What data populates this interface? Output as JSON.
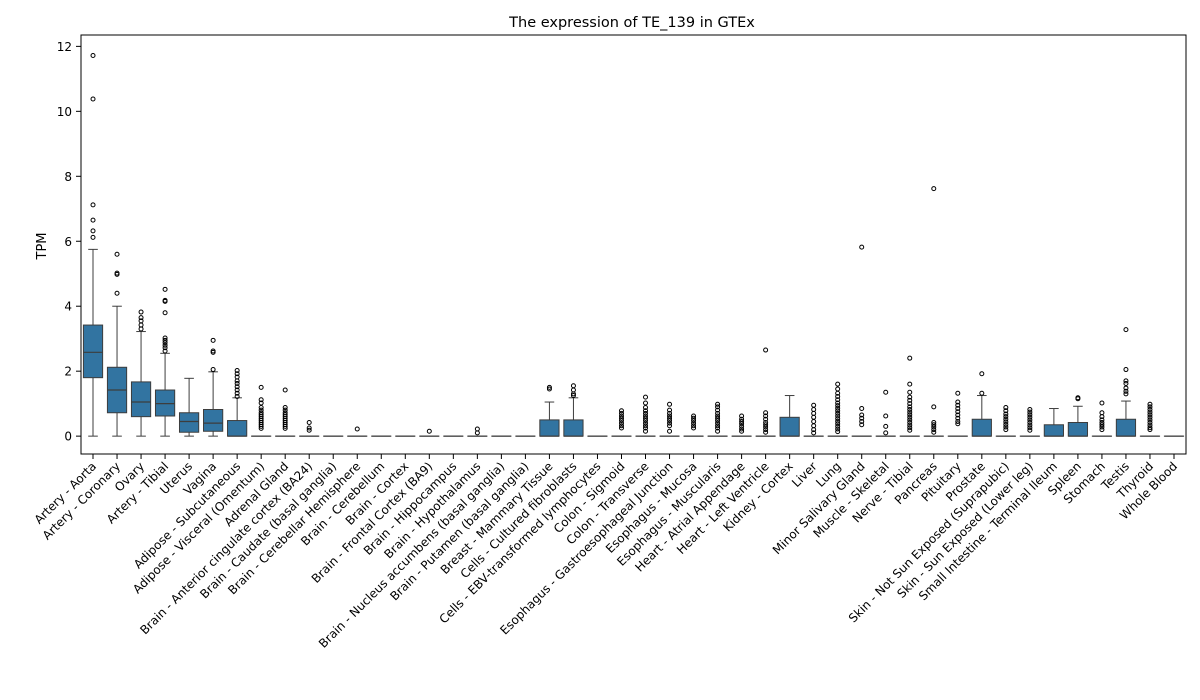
{
  "chart_data": {
    "type": "box",
    "title": "The expression of TE_139 in GTEx",
    "xlabel": "",
    "ylabel": "TPM",
    "ylim": [
      -0.55,
      12.35
    ],
    "yticks": [
      0,
      2,
      4,
      6,
      8,
      10,
      12
    ],
    "grid": false,
    "legend": "none",
    "colors": {
      "box": "#3274a1",
      "line": "#3d3d3d",
      "axis": "#000000"
    },
    "categories": [
      "Artery - Aorta",
      "Artery - Coronary",
      "Ovary",
      "Artery - Tibial",
      "Uterus",
      "Vagina",
      "Adipose - Subcutaneous",
      "Adipose - Visceral (Omentum)",
      "Adrenal Gland",
      "Brain - Anterior cingulate cortex (BA24)",
      "Brain - Caudate (basal ganglia)",
      "Brain - Cerebellar Hemisphere",
      "Brain - Cerebellum",
      "Brain - Cortex",
      "Brain - Frontal Cortex (BA9)",
      "Brain - Hippocampus",
      "Brain - Hypothalamus",
      "Brain - Nucleus accumbens (basal ganglia)",
      "Brain - Putamen (basal ganglia)",
      "Breast - Mammary Tissue",
      "Cells - Cultured fibroblasts",
      "Cells - EBV-transformed lymphocytes",
      "Colon - Sigmoid",
      "Colon - Transverse",
      "Esophagus - Gastroesophageal Junction",
      "Esophagus - Mucosa",
      "Esophagus - Muscularis",
      "Heart - Atrial Appendage",
      "Heart - Left Ventricle",
      "Kidney - Cortex",
      "Liver",
      "Lung",
      "Minor Salivary Gland",
      "Muscle - Skeletal",
      "Nerve - Tibial",
      "Pancreas",
      "Pituitary",
      "Prostate",
      "Skin - Not Sun Exposed (Suprapubic)",
      "Skin - Sun Exposed (Lower leg)",
      "Small Intestine - Terminal Ileum",
      "Spleen",
      "Stomach",
      "Testis",
      "Thyroid",
      "Whole Blood"
    ],
    "boxes": [
      {
        "whislo": 0,
        "q1": 1.8,
        "med": 2.58,
        "q3": 3.42,
        "whishi": 5.75,
        "fliers": [
          11.72,
          10.38,
          7.12,
          6.65,
          6.32,
          6.12
        ]
      },
      {
        "whislo": 0,
        "q1": 0.72,
        "med": 1.42,
        "q3": 2.12,
        "whishi": 4.0,
        "fliers": [
          5.6,
          5.02,
          4.98,
          4.4
        ]
      },
      {
        "whislo": 0,
        "q1": 0.6,
        "med": 1.05,
        "q3": 1.67,
        "whishi": 3.22,
        "fliers": [
          3.82,
          3.65,
          3.55,
          3.42,
          3.3
        ]
      },
      {
        "whislo": 0,
        "q1": 0.62,
        "med": 1.0,
        "q3": 1.42,
        "whishi": 2.55,
        "fliers": [
          4.52,
          4.18,
          4.15,
          3.8,
          3.02,
          2.95,
          2.88,
          2.8,
          2.72,
          2.62
        ]
      },
      {
        "whislo": 0,
        "q1": 0.12,
        "med": 0.45,
        "q3": 0.72,
        "whishi": 1.78,
        "fliers": []
      },
      {
        "whislo": 0,
        "q1": 0.15,
        "med": 0.4,
        "q3": 0.82,
        "whishi": 1.98,
        "fliers": [
          2.95,
          2.62,
          2.58,
          2.05
        ]
      },
      {
        "whislo": 0,
        "q1": 0,
        "med": 0,
        "q3": 0.48,
        "whishi": 1.18,
        "fliers": [
          2.02,
          1.92,
          1.82,
          1.7,
          1.62,
          1.52,
          1.42,
          1.32,
          1.22
        ]
      },
      {
        "whislo": 0,
        "q1": 0,
        "med": 0,
        "q3": 0,
        "whishi": 0,
        "fliers": [
          1.5,
          1.12,
          1.02,
          0.88,
          0.8,
          0.72,
          0.66,
          0.6,
          0.54,
          0.48,
          0.42,
          0.36,
          0.3,
          0.24
        ]
      },
      {
        "whislo": 0,
        "q1": 0,
        "med": 0,
        "q3": 0,
        "whishi": 0,
        "fliers": [
          1.42,
          0.88,
          0.8,
          0.72,
          0.66,
          0.6,
          0.54,
          0.48,
          0.42,
          0.36,
          0.3,
          0.24
        ]
      },
      {
        "whislo": 0,
        "q1": 0,
        "med": 0,
        "q3": 0,
        "whishi": 0,
        "fliers": [
          0.42,
          0.25,
          0.18
        ]
      },
      {
        "whislo": 0,
        "q1": 0,
        "med": 0,
        "q3": 0,
        "whishi": 0,
        "fliers": []
      },
      {
        "whislo": 0,
        "q1": 0,
        "med": 0,
        "q3": 0,
        "whishi": 0,
        "fliers": [
          0.22
        ]
      },
      {
        "whislo": 0,
        "q1": 0,
        "med": 0,
        "q3": 0,
        "whishi": 0,
        "fliers": []
      },
      {
        "whislo": 0,
        "q1": 0,
        "med": 0,
        "q3": 0,
        "whishi": 0,
        "fliers": []
      },
      {
        "whislo": 0,
        "q1": 0,
        "med": 0,
        "q3": 0,
        "whishi": 0,
        "fliers": [
          0.15
        ]
      },
      {
        "whislo": 0,
        "q1": 0,
        "med": 0,
        "q3": 0,
        "whishi": 0,
        "fliers": []
      },
      {
        "whislo": 0,
        "q1": 0,
        "med": 0,
        "q3": 0,
        "whishi": 0,
        "fliers": [
          0.22,
          0.1
        ]
      },
      {
        "whislo": 0,
        "q1": 0,
        "med": 0,
        "q3": 0,
        "whishi": 0,
        "fliers": []
      },
      {
        "whislo": 0,
        "q1": 0,
        "med": 0,
        "q3": 0,
        "whishi": 0,
        "fliers": []
      },
      {
        "whislo": 0,
        "q1": 0,
        "med": 0,
        "q3": 0.5,
        "whishi": 1.05,
        "fliers": [
          1.5,
          1.45
        ]
      },
      {
        "whislo": 0,
        "q1": 0,
        "med": 0,
        "q3": 0.5,
        "whishi": 1.18,
        "fliers": [
          1.55,
          1.42,
          1.3,
          1.25
        ]
      },
      {
        "whislo": 0,
        "q1": 0,
        "med": 0,
        "q3": 0,
        "whishi": 0,
        "fliers": []
      },
      {
        "whislo": 0,
        "q1": 0,
        "med": 0,
        "q3": 0,
        "whishi": 0,
        "fliers": [
          0.78,
          0.7,
          0.62,
          0.55,
          0.48,
          0.4,
          0.32,
          0.25
        ]
      },
      {
        "whislo": 0,
        "q1": 0,
        "med": 0,
        "q3": 0,
        "whishi": 0,
        "fliers": [
          1.2,
          1.02,
          0.88,
          0.78,
          0.7,
          0.62,
          0.55,
          0.48,
          0.4,
          0.32,
          0.25,
          0.15
        ]
      },
      {
        "whislo": 0,
        "q1": 0,
        "med": 0,
        "q3": 0,
        "whishi": 0,
        "fliers": [
          0.98,
          0.8,
          0.7,
          0.62,
          0.55,
          0.48,
          0.4,
          0.32,
          0.15
        ]
      },
      {
        "whislo": 0,
        "q1": 0,
        "med": 0,
        "q3": 0,
        "whishi": 0,
        "fliers": [
          0.62,
          0.55,
          0.48,
          0.4,
          0.32,
          0.25
        ]
      },
      {
        "whislo": 0,
        "q1": 0,
        "med": 0,
        "q3": 0,
        "whishi": 0,
        "fliers": [
          0.98,
          0.9,
          0.8,
          0.7,
          0.62,
          0.55,
          0.48,
          0.4,
          0.32,
          0.25,
          0.15
        ]
      },
      {
        "whislo": 0,
        "q1": 0,
        "med": 0,
        "q3": 0,
        "whishi": 0,
        "fliers": [
          0.62,
          0.52,
          0.45,
          0.38,
          0.3,
          0.22,
          0.15
        ]
      },
      {
        "whislo": 0,
        "q1": 0,
        "med": 0,
        "q3": 0,
        "whishi": 0,
        "fliers": [
          2.65,
          0.72,
          0.62,
          0.52,
          0.42,
          0.35,
          0.28,
          0.2,
          0.12
        ]
      },
      {
        "whislo": 0,
        "q1": 0,
        "med": 0,
        "q3": 0.58,
        "whishi": 1.25,
        "fliers": []
      },
      {
        "whislo": 0,
        "q1": 0,
        "med": 0,
        "q3": 0,
        "whishi": 0,
        "fliers": [
          0.95,
          0.82,
          0.7,
          0.58,
          0.45,
          0.32,
          0.2,
          0.1
        ]
      },
      {
        "whislo": 0,
        "q1": 0,
        "med": 0,
        "q3": 0,
        "whishi": 0,
        "fliers": [
          1.6,
          1.45,
          1.32,
          1.22,
          1.12,
          1.02,
          0.94,
          0.86,
          0.78,
          0.7,
          0.62,
          0.54,
          0.46,
          0.38,
          0.3,
          0.22,
          0.14
        ]
      },
      {
        "whislo": 0,
        "q1": 0,
        "med": 0,
        "q3": 0,
        "whishi": 0,
        "fliers": [
          5.82,
          0.85,
          0.65,
          0.55,
          0.45,
          0.35
        ]
      },
      {
        "whislo": 0,
        "q1": 0,
        "med": 0,
        "q3": 0,
        "whishi": 0,
        "fliers": [
          1.35,
          0.62,
          0.3,
          0.1
        ]
      },
      {
        "whislo": 0,
        "q1": 0,
        "med": 0,
        "q3": 0,
        "whishi": 0,
        "fliers": [
          2.4,
          1.6,
          1.35,
          1.2,
          1.1,
          1.0,
          0.9,
          0.82,
          0.74,
          0.66,
          0.58,
          0.5,
          0.42,
          0.34,
          0.26,
          0.18
        ]
      },
      {
        "whislo": 0,
        "q1": 0,
        "med": 0,
        "q3": 0,
        "whishi": 0,
        "fliers": [
          7.62,
          0.9,
          0.42,
          0.35,
          0.28,
          0.2,
          0.12
        ]
      },
      {
        "whislo": 0,
        "q1": 0,
        "med": 0,
        "q3": 0,
        "whishi": 0,
        "fliers": [
          1.32,
          1.05,
          0.95,
          0.85,
          0.75,
          0.65,
          0.55,
          0.45,
          0.38
        ]
      },
      {
        "whislo": 0,
        "q1": 0,
        "med": 0,
        "q3": 0.52,
        "whishi": 1.25,
        "fliers": [
          1.92,
          1.32
        ]
      },
      {
        "whislo": 0,
        "q1": 0,
        "med": 0,
        "q3": 0,
        "whishi": 0,
        "fliers": [
          0.88,
          0.78,
          0.68,
          0.6,
          0.52,
          0.44,
          0.36,
          0.28,
          0.2
        ]
      },
      {
        "whislo": 0,
        "q1": 0,
        "med": 0,
        "q3": 0,
        "whishi": 0,
        "fliers": [
          0.82,
          0.74,
          0.66,
          0.58,
          0.5,
          0.42,
          0.34,
          0.26,
          0.18
        ]
      },
      {
        "whislo": 0,
        "q1": 0,
        "med": 0,
        "q3": 0.35,
        "whishi": 0.85,
        "fliers": []
      },
      {
        "whislo": 0,
        "q1": 0,
        "med": 0,
        "q3": 0.42,
        "whishi": 0.92,
        "fliers": [
          1.18,
          1.15
        ]
      },
      {
        "whislo": 0,
        "q1": 0,
        "med": 0,
        "q3": 0,
        "whishi": 0,
        "fliers": [
          1.02,
          0.72,
          0.6,
          0.5,
          0.42,
          0.35,
          0.28,
          0.2
        ]
      },
      {
        "whislo": 0,
        "q1": 0,
        "med": 0,
        "q3": 0.52,
        "whishi": 1.08,
        "fliers": [
          3.28,
          2.05,
          1.7,
          1.62,
          1.48,
          1.38,
          1.3
        ]
      },
      {
        "whislo": 0,
        "q1": 0,
        "med": 0,
        "q3": 0,
        "whishi": 0,
        "fliers": [
          0.98,
          0.9,
          0.82,
          0.74,
          0.66,
          0.58,
          0.5,
          0.42,
          0.34,
          0.26,
          0.2
        ]
      },
      {
        "whislo": 0,
        "q1": 0,
        "med": 0,
        "q3": 0,
        "whishi": 0,
        "fliers": []
      }
    ]
  }
}
